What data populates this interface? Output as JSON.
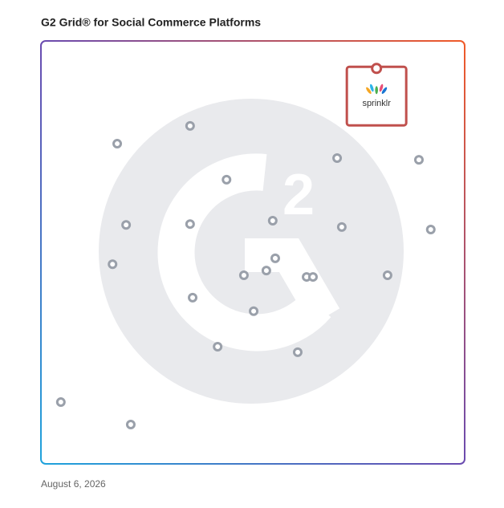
{
  "chart_data": {
    "type": "scatter",
    "title": "G2 Grid® for Social Commerce Platforms",
    "date": "August 6, 2026",
    "xlim": [
      0,
      100
    ],
    "ylim": [
      0,
      100
    ],
    "points": {
      "color": "#9aa0aa",
      "x": [
        18.0,
        35.2,
        69.9,
        89.2,
        43.8,
        20.1,
        35.2,
        54.7,
        71.0,
        92.0,
        55.3,
        16.9,
        53.2,
        47.9,
        62.7,
        64.2,
        81.8,
        35.8,
        50.2,
        41.7,
        60.6,
        4.7,
        21.2
      ],
      "y": [
        75.7,
        79.9,
        72.3,
        71.9,
        67.2,
        56.5,
        56.7,
        57.5,
        56.0,
        55.4,
        48.6,
        47.2,
        45.7,
        44.6,
        44.2,
        44.2,
        44.6,
        39.3,
        36.1,
        27.7,
        26.4,
        14.6,
        9.3
      ]
    },
    "highlight": {
      "label": "sprinklr",
      "x": 79.2,
      "y": 93.5,
      "color": "#c0504d"
    }
  }
}
